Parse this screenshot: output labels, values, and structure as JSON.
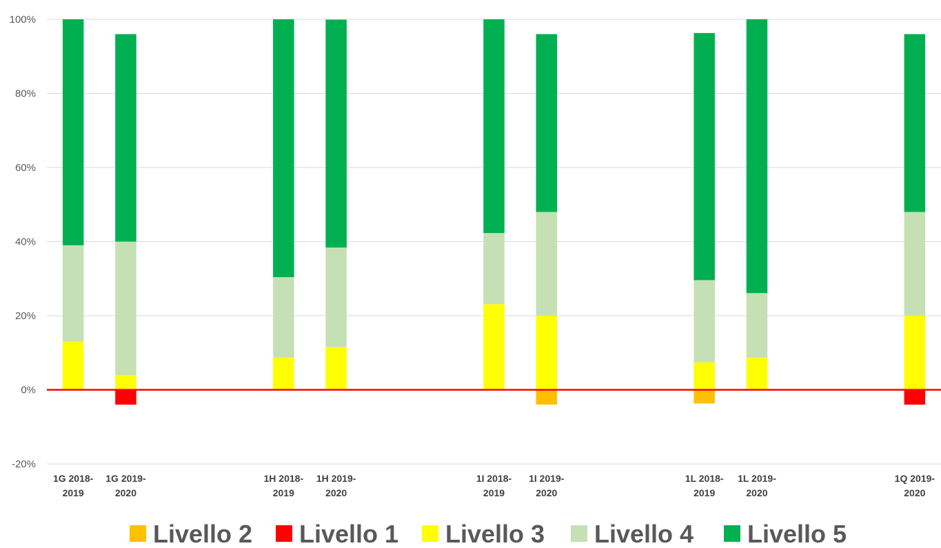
{
  "chart_data": {
    "type": "bar",
    "stacked": true,
    "title": "",
    "xlabel": "",
    "ylabel": "",
    "ylim": [
      -20,
      100
    ],
    "y_ticks": [
      "100%",
      "80%",
      "60%",
      "40%",
      "20%",
      "0%",
      "-20%"
    ],
    "grid": true,
    "legend_position": "bottom",
    "categories": [
      [
        "1G 2018-",
        "2019"
      ],
      [
        "1G 2019-",
        "2020"
      ],
      [
        "",
        ""
      ],
      [
        "",
        ""
      ],
      [
        "1H 2018-",
        "2019"
      ],
      [
        "1H 2019-",
        "2020"
      ],
      [
        "",
        ""
      ],
      [
        "",
        ""
      ],
      [
        "1I 2018-",
        "2019"
      ],
      [
        "1I 2019-",
        "2020"
      ],
      [
        "",
        ""
      ],
      [
        "",
        ""
      ],
      [
        "1L 2018-",
        "2019"
      ],
      [
        "1L 2019-",
        "2020"
      ],
      [
        "",
        ""
      ],
      [
        "",
        ""
      ],
      [
        "1Q 2019-",
        "2020"
      ]
    ],
    "series": [
      {
        "name": "Livello 2",
        "color": "#FFC000",
        "values": [
          0,
          0,
          null,
          null,
          0,
          0,
          null,
          null,
          0,
          -4,
          null,
          null,
          -3.7,
          0,
          null,
          null,
          0
        ]
      },
      {
        "name": "Livello 1",
        "color": "#FF0000",
        "values": [
          0,
          -4,
          null,
          null,
          0,
          0,
          null,
          null,
          0,
          0,
          null,
          null,
          0,
          0,
          null,
          null,
          -4
        ]
      },
      {
        "name": "Livello 3",
        "color": "#FFFF00",
        "values": [
          13,
          4,
          null,
          null,
          8.7,
          11.5,
          null,
          null,
          23.1,
          20,
          null,
          null,
          7.4,
          8.7,
          null,
          null,
          20
        ]
      },
      {
        "name": "Livello 4",
        "color": "#C5E0B4",
        "values": [
          26,
          36,
          null,
          null,
          21.7,
          26.9,
          null,
          null,
          19.2,
          28,
          null,
          null,
          22.2,
          17.4,
          null,
          null,
          28
        ]
      },
      {
        "name": "Livello 5",
        "color": "#00B050",
        "values": [
          61,
          56,
          null,
          null,
          69.6,
          61.5,
          null,
          null,
          57.7,
          48,
          null,
          null,
          66.7,
          73.9,
          null,
          null,
          48
        ]
      }
    ],
    "zero_line_color": "#FF0000",
    "gridline_color": "#D9D9D9"
  }
}
